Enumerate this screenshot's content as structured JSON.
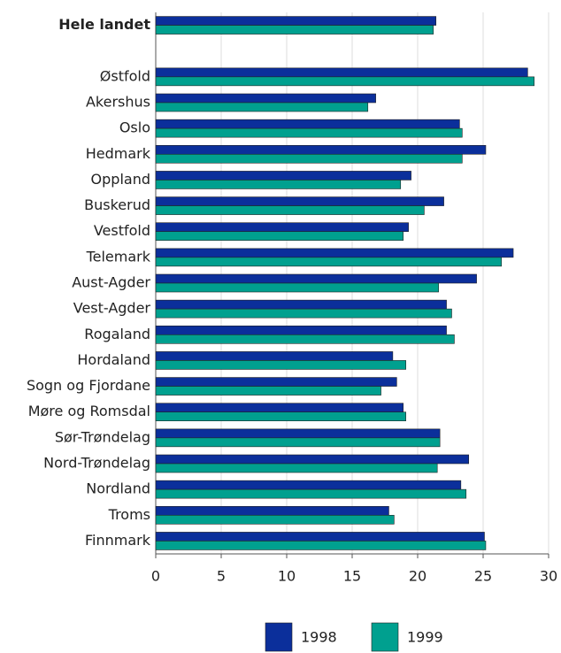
{
  "chart_data": {
    "type": "barh",
    "categories": [
      "Hele landet",
      null,
      "Østfold",
      "Akershus",
      "Oslo",
      "Hedmark",
      "Oppland",
      "Buskerud",
      "Vestfold",
      "Telemark",
      "Aust-Agder",
      "Vest-Agder",
      "Rogaland",
      "Hordaland",
      "Sogn og Fjordane",
      "Møre og Romsdal",
      "Sør-Trøndelag",
      "Nord-Trøndelag",
      "Nordland",
      "Troms",
      "Finnmark"
    ],
    "series": [
      {
        "name": "1998",
        "color": "#0b2f9b",
        "values": [
          21.4,
          null,
          28.4,
          16.8,
          23.2,
          25.2,
          19.5,
          22.0,
          19.3,
          27.3,
          24.5,
          22.2,
          22.2,
          18.1,
          18.4,
          18.9,
          21.7,
          23.9,
          23.3,
          17.8,
          25.1
        ]
      },
      {
        "name": "1999",
        "color": "#00a08f",
        "values": [
          21.2,
          null,
          28.9,
          16.2,
          23.4,
          23.4,
          18.7,
          20.5,
          18.9,
          26.4,
          21.6,
          22.6,
          22.8,
          19.1,
          17.2,
          19.1,
          21.7,
          21.5,
          23.7,
          18.2,
          25.2
        ]
      }
    ],
    "xlim": [
      0,
      30
    ],
    "xticks": [
      0,
      5,
      10,
      15,
      20,
      25,
      30
    ],
    "grid": true,
    "legend": "bottom"
  }
}
